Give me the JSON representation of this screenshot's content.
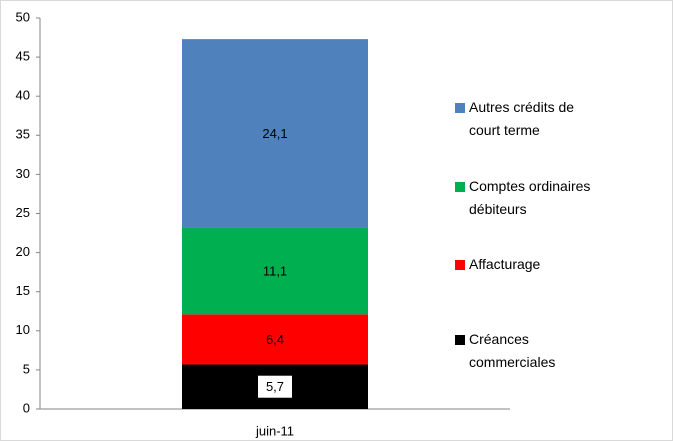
{
  "chart_data": {
    "type": "stacked_bar",
    "categories": [
      "juin-11"
    ],
    "series": [
      {
        "name": "Créances commerciales",
        "color": "#000000",
        "values": [
          5.7
        ],
        "value_labels": [
          "5,7"
        ]
      },
      {
        "name": "Affacturage",
        "color": "#ff0000",
        "values": [
          6.4
        ],
        "value_labels": [
          "6,4"
        ]
      },
      {
        "name": "Comptes ordinaires débiteurs",
        "color": "#00b050",
        "values": [
          11.1
        ],
        "value_labels": [
          "11,1"
        ]
      },
      {
        "name": "Autres crédits de court terme",
        "color": "#4f81bd",
        "values": [
          24.1
        ],
        "value_labels": [
          "24,1"
        ]
      }
    ],
    "ylim": [
      0,
      50
    ],
    "yticks": [
      0,
      5,
      10,
      15,
      20,
      25,
      30,
      35,
      40,
      45,
      50
    ],
    "grid": false,
    "legend": "right"
  }
}
